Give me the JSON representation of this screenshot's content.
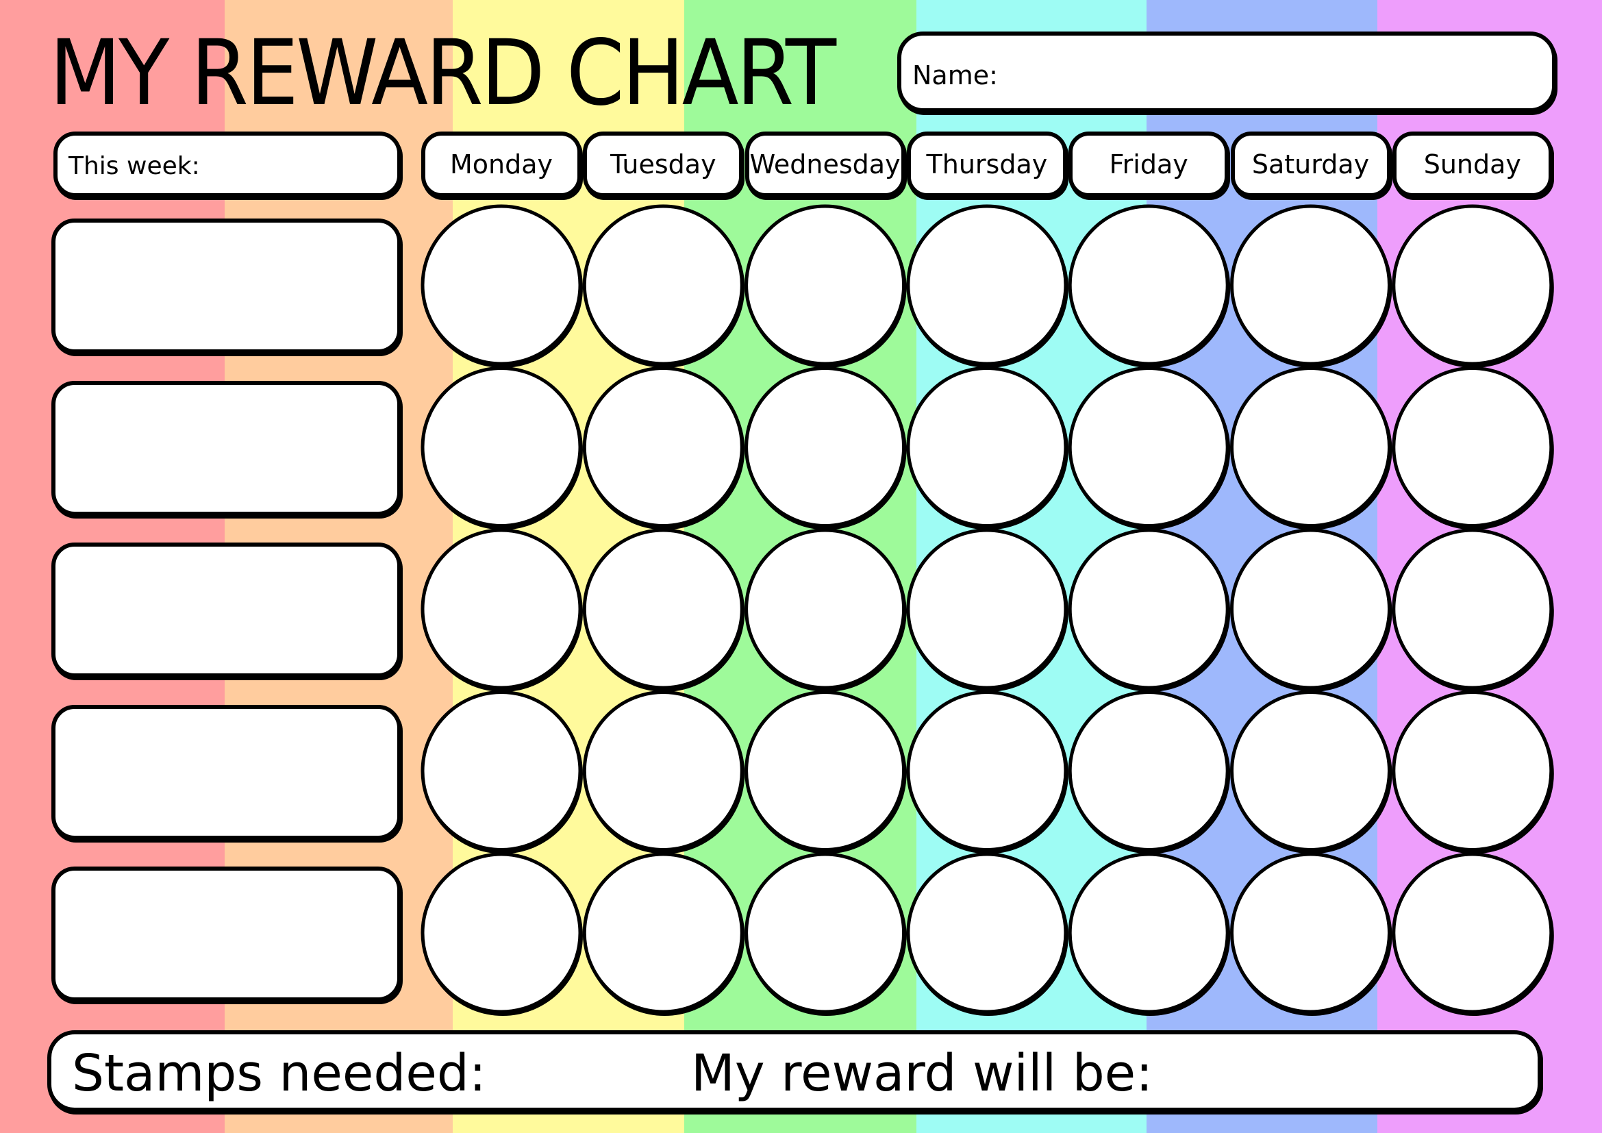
{
  "title": "MY REWARD CHART",
  "name_label": "Name:",
  "week_label": "This week:",
  "days": [
    "Monday",
    "Tuesday",
    "Wednesday",
    "Thursday",
    "Friday",
    "Saturday",
    "Sunday"
  ],
  "task_rows": 5,
  "stamps_label": "Stamps needed:",
  "reward_label": "My reward will be:",
  "stripe_colors": [
    "#ff9e9e",
    "#ffcc9e",
    "#fffa9c",
    "#9efa9a",
    "#9efcf4",
    "#9eb8fc",
    "#ee9efc"
  ]
}
